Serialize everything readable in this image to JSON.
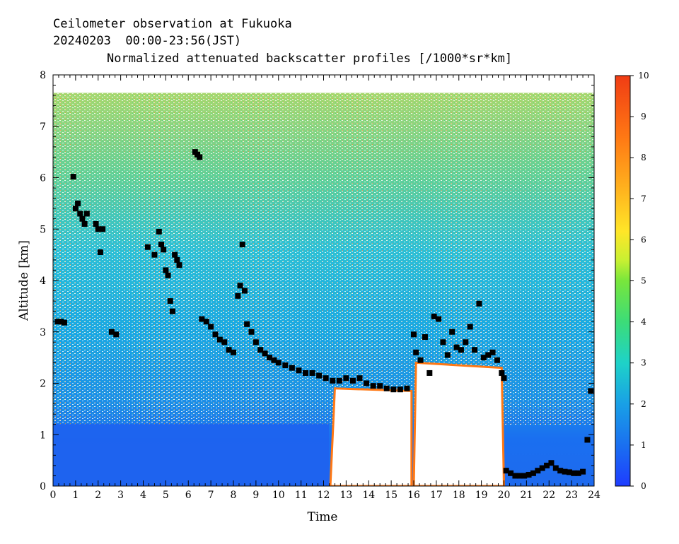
{
  "header": {
    "line1": "Ceilometer observation at Fukuoka",
    "line2": "20240203  00:00-23:56(JST)"
  },
  "chart_data": {
    "type": "heatmap",
    "title": "Normalized attenuated backscatter profiles [/1000*sr*km]",
    "xlabel": "Time",
    "ylabel": "Altitude [km]",
    "xlim": [
      0,
      24
    ],
    "ylim": [
      0,
      8
    ],
    "x_ticks": [
      "0",
      "1",
      "2",
      "3",
      "4",
      "5",
      "6",
      "7",
      "8",
      "9",
      "10",
      "11",
      "12",
      "13",
      "14",
      "15",
      "16",
      "17",
      "18",
      "19",
      "20",
      "21",
      "22",
      "23",
      "24"
    ],
    "y_ticks": [
      "0",
      "1",
      "2",
      "3",
      "4",
      "5",
      "6",
      "7",
      "8"
    ],
    "colorbar": {
      "range": [
        0,
        10
      ],
      "ticks": [
        "0",
        "1",
        "2",
        "3",
        "4",
        "5",
        "6",
        "7",
        "8",
        "9",
        "10"
      ],
      "colors": [
        "#1e3cff",
        "#1a70f0",
        "#19a0e6",
        "#1ed2c8",
        "#3cdc78",
        "#78e63c",
        "#c8f032",
        "#ffe628",
        "#ffb41e",
        "#ff7814",
        "#f03c14"
      ]
    },
    "data_top_km": 7.65,
    "cloud_base_points": {
      "description_series": "Detected layer (black squares)",
      "x": [
        0.2,
        0.35,
        0.5,
        0.9,
        1.0,
        1.1,
        1.2,
        1.3,
        1.4,
        1.5,
        1.9,
        2.0,
        2.1,
        2.2,
        2.6,
        2.8,
        4.2,
        4.5,
        4.7,
        4.8,
        4.9,
        5.0,
        5.1,
        5.2,
        5.3,
        5.4,
        5.5,
        5.6,
        6.3,
        6.4,
        6.5,
        6.6,
        6.8,
        7.0,
        7.2,
        7.4,
        7.6,
        7.8,
        8.0,
        8.2,
        8.3,
        8.4,
        8.5,
        8.6,
        8.8,
        9.0,
        9.2,
        9.4,
        9.6,
        9.8,
        10.0,
        10.3,
        10.6,
        10.9,
        11.2,
        11.5,
        11.8,
        12.1,
        12.4,
        12.7,
        13.0,
        13.3,
        13.6,
        13.9,
        14.2,
        14.5,
        14.8,
        15.1,
        15.4,
        15.7,
        16.0,
        16.1,
        16.3,
        16.5,
        16.7,
        16.9,
        17.1,
        17.3,
        17.5,
        17.7,
        17.9,
        18.1,
        18.3,
        18.5,
        18.7,
        18.9,
        19.1,
        19.3,
        19.5,
        19.7,
        19.9,
        20.0,
        20.1,
        20.3,
        20.5,
        20.7,
        20.9,
        21.1,
        21.3,
        21.5,
        21.7,
        21.9,
        22.1,
        22.3,
        22.5,
        22.7,
        22.9,
        23.1,
        23.3,
        23.5,
        23.7,
        23.85
      ],
      "y": [
        3.2,
        3.2,
        3.18,
        6.02,
        5.4,
        5.5,
        5.3,
        5.2,
        5.1,
        5.3,
        5.1,
        5.0,
        4.55,
        5.0,
        3.0,
        2.95,
        4.65,
        4.5,
        4.95,
        4.7,
        4.6,
        4.2,
        4.1,
        3.6,
        3.4,
        4.5,
        4.4,
        4.3,
        6.5,
        6.45,
        6.4,
        3.25,
        3.2,
        3.1,
        2.95,
        2.85,
        2.8,
        2.65,
        2.6,
        3.7,
        3.9,
        4.7,
        3.8,
        3.15,
        3.0,
        2.8,
        2.65,
        2.58,
        2.5,
        2.45,
        2.4,
        2.35,
        2.3,
        2.25,
        2.2,
        2.2,
        2.15,
        2.1,
        2.05,
        2.05,
        2.1,
        2.05,
        2.1,
        2.0,
        1.95,
        1.95,
        1.9,
        1.88,
        1.88,
        1.9,
        2.95,
        2.6,
        2.45,
        2.9,
        2.2,
        3.3,
        3.25,
        2.8,
        2.55,
        3.0,
        2.7,
        2.65,
        2.8,
        3.1,
        2.65,
        3.55,
        2.5,
        2.55,
        2.6,
        2.45,
        2.2,
        2.1,
        0.3,
        0.25,
        0.2,
        0.2,
        0.2,
        0.22,
        0.25,
        0.3,
        0.35,
        0.4,
        0.45,
        0.35,
        0.3,
        0.28,
        0.27,
        0.25,
        0.25,
        0.28,
        0.9,
        1.85
      ]
    }
  },
  "colors": {
    "background": "#ffffff",
    "axis": "#000000",
    "marker": "#000000"
  }
}
